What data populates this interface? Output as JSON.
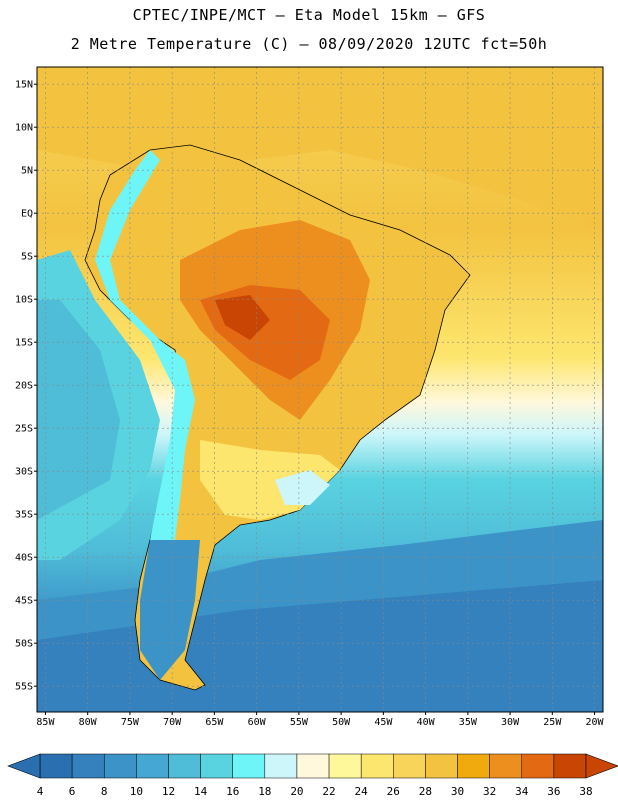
{
  "header": {
    "line1": "CPTEC/INPE/MCT –  Eta Model 15km – GFS",
    "line2": "2 Metre Temperature (C) – 08/09/2020 12UTC fct=50h"
  },
  "map": {
    "lat_labels": [
      "15N",
      "10N",
      "5N",
      "EQ",
      "5S",
      "10S",
      "15S",
      "20S",
      "25S",
      "30S",
      "35S",
      "40S",
      "45S",
      "50S",
      "55S"
    ],
    "lat_values": [
      15,
      10,
      5,
      0,
      -5,
      -10,
      -15,
      -20,
      -25,
      -30,
      -35,
      -40,
      -45,
      -50,
      -55
    ],
    "lon_labels": [
      "85W",
      "80W",
      "75W",
      "70W",
      "65W",
      "60W",
      "55W",
      "50W",
      "45W",
      "40W",
      "35W",
      "30W",
      "25W",
      "20W"
    ],
    "lon_values": [
      -85,
      -80,
      -75,
      -70,
      -65,
      -60,
      -55,
      -50,
      -45,
      -40,
      -35,
      -30,
      -25,
      -20
    ],
    "lat_range": [
      -58,
      17
    ],
    "lon_range": [
      -86,
      -19
    ]
  },
  "legend": {
    "labels": [
      "4",
      "6",
      "8",
      "10",
      "12",
      "14",
      "16",
      "18",
      "20",
      "22",
      "24",
      "26",
      "28",
      "30",
      "32",
      "34",
      "36",
      "38"
    ],
    "colors": [
      "#2a6fb0",
      "#3481be",
      "#3b93c8",
      "#45a8d2",
      "#4fbcd8",
      "#59d3e0",
      "#6ef5f8",
      "#ccf6fa",
      "#fff8dc",
      "#fff89a",
      "#fde66e",
      "#f8d45a",
      "#f3c340",
      "#f0aa0d",
      "#ed8f1e",
      "#e36a12",
      "#c84504"
    ]
  }
}
